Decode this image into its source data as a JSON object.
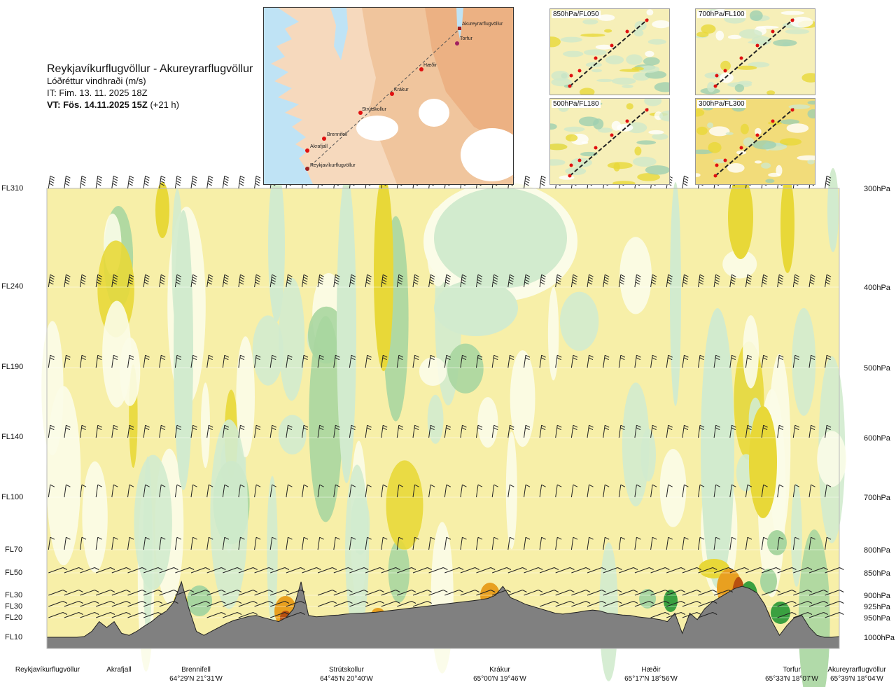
{
  "header": {
    "title": "Reykjavíkurflugvöllur - Akureyrarflugvöllur",
    "subtitle": "Lóðréttur vindhraði (m/s)",
    "init_time": "IT: Fim. 13. 11. 2025 18Z",
    "valid_time_bold": "VT: Fös. 14.11.2025 15Z",
    "valid_time_offset": "(+21 h)"
  },
  "map": {
    "waypoints": [
      "Akureyrarflugvöllur",
      "Torfur",
      "Hæðir",
      "Krákur",
      "Strútskollur",
      "Brennifell",
      "Akrafjall",
      "Reykjavíkurflugvöllur"
    ]
  },
  "insets": [
    {
      "label": "850hPa/FL050"
    },
    {
      "label": "700hPa/FL100"
    },
    {
      "label": "500hPa/FL180"
    },
    {
      "label": "300hPa/FL300"
    }
  ],
  "colors": {
    "weak_up": "#f7efa8",
    "up_1": "#e8d838",
    "up_2": "#e8a020",
    "up_3": "#b85010",
    "down_1": "#d2ebce",
    "down_2": "#a8d6a0",
    "down_3": "#3aa040",
    "near_zero": "#fbfce8",
    "terrain": "#808080",
    "route": "#222222",
    "waypoint": "#e01010"
  },
  "chart_data": {
    "type": "heatmap",
    "title": "Reykjavíkurflugvöllur - Akureyrarflugvöllur",
    "variable": "Lóðréttur vindhraði (m/s)",
    "flight_levels": [
      "FL310",
      "FL240",
      "FL190",
      "FL140",
      "FL100",
      "FL70",
      "FL50",
      "FL30",
      "FL30",
      "FL20",
      "FL10"
    ],
    "pressure_levels": [
      "300hPa",
      "400hPa",
      "500hPa",
      "600hPa",
      "700hPa",
      "800hPa",
      "850hPa",
      "900hPa",
      "925hPa",
      "950hPa",
      "1000hPa"
    ],
    "pressure_values": [
      300,
      400,
      500,
      600,
      700,
      800,
      850,
      900,
      925,
      950,
      1000
    ],
    "locations": [
      {
        "name": "Reykjavíkurflugvöllur",
        "coords": "",
        "frac": 0.0
      },
      {
        "name": "Akrafjall",
        "coords": "",
        "frac": 0.091
      },
      {
        "name": "Brennifell",
        "coords": "64°29'N 21°31'W",
        "frac": 0.186
      },
      {
        "name": "Strútskollur",
        "coords": "64°45'N 20°40'W",
        "frac": 0.375
      },
      {
        "name": "Krákur",
        "coords": "65°00'N 19°46'W",
        "frac": 0.559
      },
      {
        "name": "Hæðir",
        "coords": "65°17'N 18°56'W",
        "frac": 0.76
      },
      {
        "name": "Torfur",
        "coords": "65°33'N 18°07'W",
        "frac": 0.958
      },
      {
        "name": "Akureyrarflugvöllur",
        "coords": "65°39'N 18°04'W",
        "frac": 1.0
      }
    ],
    "terrain_pressure": [
      1000,
      1000,
      1000,
      1000,
      1000,
      998,
      985,
      960,
      975,
      960,
      990,
      995,
      985,
      972,
      960,
      945,
      935,
      915,
      870,
      930,
      985,
      995,
      985,
      975,
      965,
      957,
      952,
      947,
      945,
      950,
      955,
      960,
      950,
      930,
      870,
      945,
      948,
      947,
      945,
      944,
      942,
      941,
      940,
      939,
      938,
      936,
      934,
      932,
      930,
      928,
      926,
      924,
      922,
      920,
      918,
      916,
      914,
      912,
      910,
      907,
      900,
      880,
      905,
      912,
      920,
      925,
      930,
      935,
      940,
      942,
      940,
      938,
      935,
      933,
      935,
      940,
      942,
      944,
      945,
      948,
      950,
      952,
      955,
      960,
      940,
      990,
      940,
      955,
      930,
      915,
      905,
      895,
      885,
      880,
      885,
      895,
      920,
      960,
      995,
      970,
      950,
      945,
      975,
      995,
      1000,
      1000,
      998
    ],
    "wind_units": "m/s"
  }
}
